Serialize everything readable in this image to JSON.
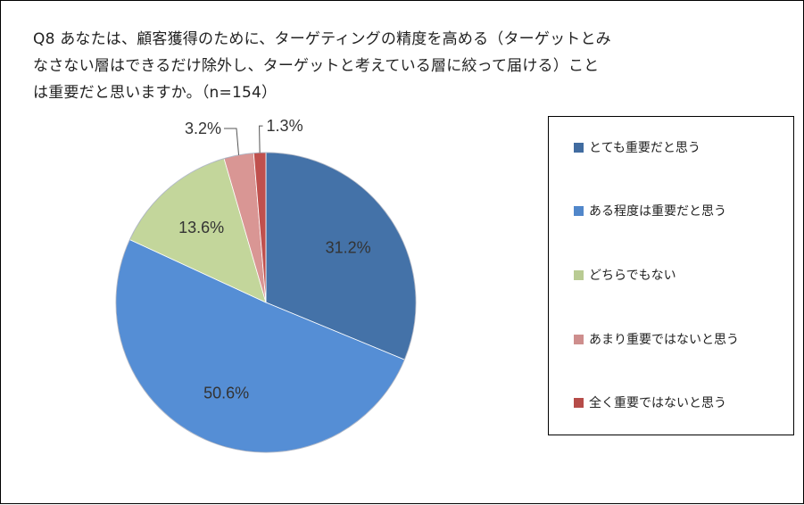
{
  "title_lines": [
    "Q8 あなたは、顧客獲得のために、ターゲティングの精度を高める（ターゲットとみ",
    "なさない層はできるだけ除外し、ターゲットと考えている層に絞って届ける）こと",
    "は重要だと思いますか。（n=154）"
  ],
  "chart_data": {
    "type": "pie",
    "title": "Q8 あなたは、顧客獲得のために、ターゲティングの精度を高める（ターゲットとみなさない層はできるだけ除外し、ターゲットと考えている層に絞って届ける）ことは重要だと思いますか。（n=154）",
    "start_angle_deg": 0,
    "direction": "clockwise",
    "legend_position": "right",
    "slices": [
      {
        "label": "とても重要だと思う",
        "value": 31.2,
        "display": "31.2%",
        "color": "#4472A8"
      },
      {
        "label": "ある程度は重要だと思う",
        "value": 50.6,
        "display": "50.6%",
        "color": "#558ED5"
      },
      {
        "label": "どちらでもない",
        "value": 13.6,
        "display": "13.6%",
        "color": "#C3D69B"
      },
      {
        "label": "あまり重要ではないと思う",
        "value": 3.2,
        "display": "3.2%",
        "color": "#D99694"
      },
      {
        "label": "全く重要ではないと思う",
        "value": 1.3,
        "display": "1.3%",
        "color": "#C0504D"
      }
    ]
  }
}
